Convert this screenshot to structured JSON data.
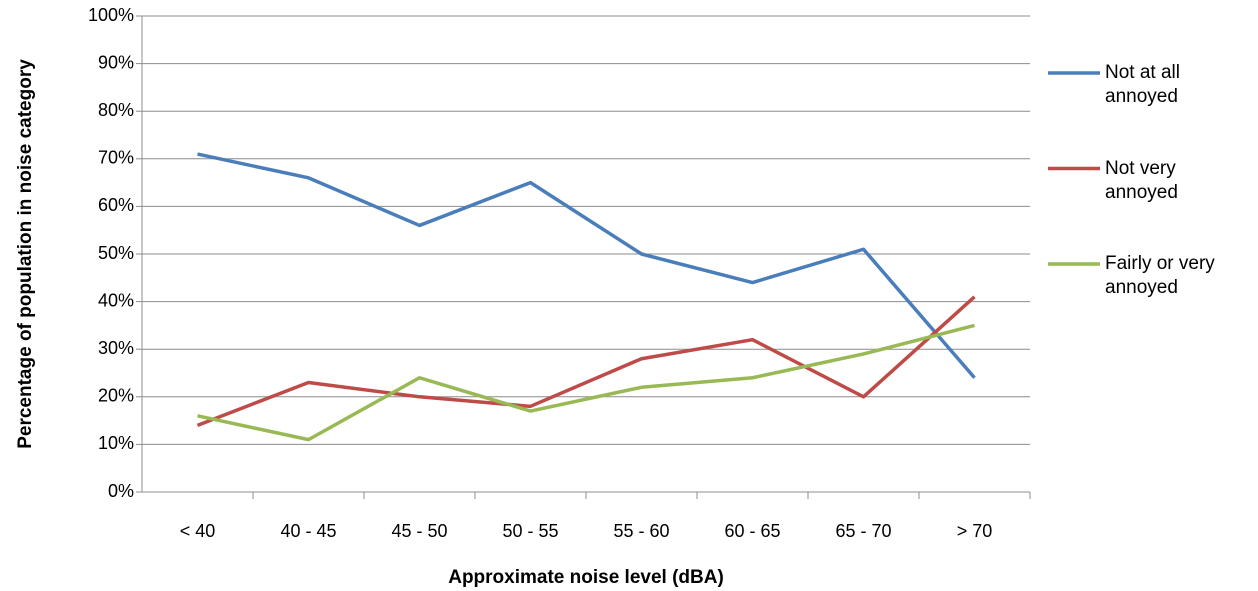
{
  "chart_data": {
    "type": "line",
    "y_label": "Percentage of population in noise category",
    "x_label": "Approximate noise level (dBA)",
    "categories": [
      "< 40",
      "40 - 45",
      "45 - 50",
      "50 - 55",
      "55 - 60",
      "60 - 65",
      "65 - 70",
      "> 70"
    ],
    "series": [
      {
        "name": "Not at all annoyed",
        "color": "#4a7ebb",
        "values": [
          71,
          66,
          56,
          65,
          50,
          44,
          51,
          24
        ]
      },
      {
        "name": "Not very annoyed",
        "color": "#be4b48",
        "values": [
          14,
          23,
          20,
          18,
          28,
          32,
          20,
          41
        ]
      },
      {
        "name": "Fairly or very annoyed",
        "color": "#98b954",
        "values": [
          16,
          11,
          24,
          17,
          22,
          24,
          29,
          35
        ]
      }
    ],
    "ylim": [
      0,
      100
    ],
    "yticks": [
      {
        "value": 0,
        "label": "0%"
      },
      {
        "value": 10,
        "label": "10%"
      },
      {
        "value": 20,
        "label": "20%"
      },
      {
        "value": 30,
        "label": "30%"
      },
      {
        "value": 40,
        "label": "40%"
      },
      {
        "value": 50,
        "label": "50%"
      },
      {
        "value": 60,
        "label": "60%"
      },
      {
        "value": 70,
        "label": "70%"
      },
      {
        "value": 80,
        "label": "80%"
      },
      {
        "value": 90,
        "label": "90%"
      },
      {
        "value": 100,
        "label": "100%"
      }
    ],
    "grid": true,
    "legend": "right"
  }
}
